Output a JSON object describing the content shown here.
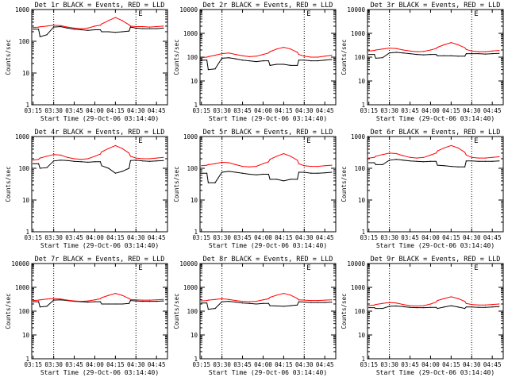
{
  "colors": {
    "events": "#000000",
    "lld": "#ff0000",
    "axes": "#000000",
    "background": "#ffffff"
  },
  "shared": {
    "ylabel": "Counts/sec",
    "xlabel": "Start Time (29-Oct-06 03:14:40)",
    "x_ticks": [
      "03:15",
      "03:30",
      "03:45",
      "04:00",
      "04:15",
      "04:30",
      "04:45"
    ],
    "y_ticks": [
      "1",
      "10",
      "100",
      "1000"
    ],
    "y_ticks_top": [
      "1",
      "10",
      "100",
      "1000",
      "10000"
    ],
    "markers": [
      "03:30",
      "04:30"
    ],
    "e_marker": "E",
    "y_scale": "log"
  },
  "chart_data": [
    {
      "type": "line",
      "title": "Det 1r  BLACK = Events, RED = LLD",
      "ylim": [
        1,
        1000
      ],
      "x": [
        "03:15",
        "03:19",
        "03:20",
        "03:25",
        "03:30",
        "03:35",
        "03:40",
        "03:45",
        "03:50",
        "03:55",
        "04:00",
        "04:04",
        "04:05",
        "04:10",
        "04:15",
        "04:20",
        "04:25",
        "04:26",
        "04:30",
        "04:35",
        "04:40",
        "04:45",
        "04:50"
      ],
      "series": [
        {
          "name": "Events",
          "values": [
            240,
            240,
            140,
            160,
            280,
            290,
            260,
            240,
            230,
            220,
            230,
            230,
            200,
            200,
            190,
            200,
            210,
            280,
            260,
            250,
            250,
            250,
            260
          ]
        },
        {
          "name": "LLD",
          "values": [
            270,
            280,
            285,
            300,
            320,
            310,
            280,
            260,
            250,
            260,
            300,
            320,
            350,
            450,
            560,
            450,
            330,
            300,
            290,
            290,
            280,
            290,
            300
          ]
        }
      ]
    },
    {
      "type": "line",
      "title": "Det 2r  BLACK = Events, RED = LLD",
      "ylim": [
        1,
        10000
      ],
      "x": [
        "03:15",
        "03:19",
        "03:20",
        "03:25",
        "03:30",
        "03:35",
        "03:40",
        "03:45",
        "03:50",
        "03:55",
        "04:00",
        "04:04",
        "04:05",
        "04:10",
        "04:15",
        "04:20",
        "04:25",
        "04:26",
        "04:30",
        "04:35",
        "04:40",
        "04:45",
        "04:50"
      ],
      "series": [
        {
          "name": "Events",
          "values": [
            75,
            75,
            30,
            32,
            90,
            95,
            85,
            75,
            70,
            65,
            70,
            70,
            45,
            50,
            50,
            45,
            45,
            75,
            75,
            70,
            70,
            75,
            80
          ]
        },
        {
          "name": "LLD",
          "values": [
            95,
            100,
            105,
            120,
            140,
            150,
            130,
            115,
            105,
            110,
            130,
            150,
            170,
            220,
            260,
            220,
            160,
            130,
            110,
            100,
            100,
            110,
            120
          ]
        }
      ]
    },
    {
      "type": "line",
      "title": "Det 3r  BLACK = Events, RED = LLD",
      "ylim": [
        1,
        10000
      ],
      "x": [
        "03:15",
        "03:19",
        "03:20",
        "03:25",
        "03:30",
        "03:35",
        "03:40",
        "03:45",
        "03:50",
        "03:55",
        "04:00",
        "04:04",
        "04:05",
        "04:10",
        "04:15",
        "04:20",
        "04:25",
        "04:26",
        "04:30",
        "04:35",
        "04:40",
        "04:45",
        "04:50"
      ],
      "series": [
        {
          "name": "Events",
          "values": [
            130,
            130,
            90,
            95,
            150,
            160,
            150,
            140,
            130,
            125,
            130,
            130,
            115,
            115,
            115,
            110,
            110,
            140,
            140,
            140,
            135,
            140,
            145
          ]
        },
        {
          "name": "LLD",
          "values": [
            180,
            190,
            200,
            220,
            240,
            230,
            200,
            180,
            170,
            175,
            200,
            230,
            260,
            330,
            410,
            330,
            250,
            210,
            180,
            170,
            170,
            180,
            190
          ]
        }
      ]
    },
    {
      "type": "line",
      "title": "Det 4r  BLACK = Events, RED = LLD",
      "ylim": [
        1,
        1000
      ],
      "x": [
        "03:15",
        "03:19",
        "03:20",
        "03:25",
        "03:30",
        "03:35",
        "03:40",
        "03:45",
        "03:50",
        "03:55",
        "04:00",
        "04:04",
        "04:05",
        "04:10",
        "04:15",
        "04:20",
        "04:25",
        "04:26",
        "04:30",
        "04:35",
        "04:40",
        "04:45",
        "04:50"
      ],
      "series": [
        {
          "name": "Events",
          "values": [
            140,
            140,
            100,
            105,
            170,
            180,
            175,
            165,
            160,
            155,
            160,
            160,
            120,
            100,
            70,
            80,
            100,
            175,
            180,
            170,
            165,
            170,
            175
          ]
        },
        {
          "name": "LLD",
          "values": [
            180,
            190,
            210,
            240,
            270,
            260,
            220,
            200,
            190,
            200,
            240,
            280,
            330,
            420,
            520,
            420,
            300,
            240,
            210,
            200,
            200,
            210,
            220
          ]
        }
      ]
    },
    {
      "type": "line",
      "title": "Det 5r  BLACK = Events, RED = LLD",
      "ylim": [
        1,
        1000
      ],
      "x": [
        "03:15",
        "03:19",
        "03:20",
        "03:25",
        "03:30",
        "03:35",
        "03:40",
        "03:45",
        "03:50",
        "03:55",
        "04:00",
        "04:04",
        "04:05",
        "04:10",
        "04:15",
        "04:20",
        "04:25",
        "04:26",
        "04:30",
        "04:35",
        "04:40",
        "04:45",
        "04:50"
      ],
      "series": [
        {
          "name": "Events",
          "values": [
            70,
            70,
            35,
            35,
            75,
            80,
            75,
            70,
            65,
            62,
            65,
            65,
            45,
            45,
            40,
            45,
            45,
            75,
            75,
            70,
            70,
            72,
            75
          ]
        },
        {
          "name": "LLD",
          "values": [
            120,
            125,
            130,
            140,
            155,
            150,
            130,
            115,
            110,
            115,
            140,
            160,
            190,
            240,
            290,
            240,
            180,
            140,
            120,
            115,
            115,
            120,
            125
          ]
        }
      ]
    },
    {
      "type": "line",
      "title": "Det 6r  BLACK = Events, RED = LLD",
      "ylim": [
        1,
        1000
      ],
      "x": [
        "03:15",
        "03:19",
        "03:20",
        "03:25",
        "03:30",
        "03:35",
        "03:40",
        "03:45",
        "03:50",
        "03:55",
        "04:00",
        "04:04",
        "04:05",
        "04:10",
        "04:15",
        "04:20",
        "04:25",
        "04:26",
        "04:30",
        "04:35",
        "04:40",
        "04:45",
        "04:50"
      ],
      "series": [
        {
          "name": "Events",
          "values": [
            150,
            150,
            130,
            130,
            180,
            190,
            180,
            170,
            165,
            160,
            165,
            165,
            125,
            120,
            115,
            110,
            110,
            170,
            170,
            165,
            165,
            165,
            170
          ]
        },
        {
          "name": "LLD",
          "values": [
            210,
            220,
            240,
            270,
            300,
            290,
            250,
            220,
            210,
            220,
            260,
            300,
            350,
            440,
            520,
            440,
            320,
            260,
            220,
            210,
            210,
            220,
            230
          ]
        }
      ]
    },
    {
      "type": "line",
      "title": "Det 7r  BLACK = Events, RED = LLD",
      "ylim": [
        1,
        10000
      ],
      "x": [
        "03:15",
        "03:19",
        "03:20",
        "03:25",
        "03:30",
        "03:35",
        "03:40",
        "03:45",
        "03:50",
        "03:55",
        "04:00",
        "04:04",
        "04:05",
        "04:10",
        "04:15",
        "04:20",
        "04:25",
        "04:26",
        "04:30",
        "04:35",
        "04:40",
        "04:45",
        "04:50"
      ],
      "series": [
        {
          "name": "Events",
          "values": [
            250,
            250,
            150,
            160,
            290,
            300,
            280,
            260,
            250,
            240,
            250,
            250,
            200,
            200,
            200,
            200,
            210,
            280,
            270,
            260,
            260,
            260,
            270
          ]
        },
        {
          "name": "LLD",
          "values": [
            280,
            290,
            300,
            320,
            340,
            320,
            290,
            270,
            260,
            270,
            300,
            330,
            370,
            460,
            560,
            460,
            340,
            310,
            300,
            290,
            290,
            300,
            310
          ]
        }
      ]
    },
    {
      "type": "line",
      "title": "Det 8r  BLACK = Events, RED = LLD",
      "ylim": [
        1,
        10000
      ],
      "x": [
        "03:15",
        "03:19",
        "03:20",
        "03:25",
        "03:30",
        "03:35",
        "03:40",
        "03:45",
        "03:50",
        "03:55",
        "04:00",
        "04:04",
        "04:05",
        "04:10",
        "04:15",
        "04:20",
        "04:25",
        "04:26",
        "04:30",
        "04:35",
        "04:40",
        "04:45",
        "04:50"
      ],
      "series": [
        {
          "name": "Events",
          "values": [
            220,
            220,
            120,
            130,
            250,
            260,
            240,
            220,
            210,
            200,
            210,
            210,
            170,
            165,
            160,
            170,
            180,
            250,
            240,
            230,
            230,
            230,
            240
          ]
        },
        {
          "name": "LLD",
          "values": [
            270,
            280,
            290,
            310,
            330,
            310,
            280,
            260,
            250,
            260,
            300,
            330,
            380,
            470,
            560,
            470,
            340,
            300,
            290,
            280,
            280,
            290,
            300
          ]
        }
      ]
    },
    {
      "type": "line",
      "title": "Det 9r  BLACK = Events, RED = LLD",
      "ylim": [
        1,
        10000
      ],
      "x": [
        "03:15",
        "03:19",
        "03:20",
        "03:25",
        "03:30",
        "03:35",
        "03:40",
        "03:45",
        "03:50",
        "03:55",
        "04:00",
        "04:04",
        "04:05",
        "04:10",
        "04:15",
        "04:20",
        "04:25",
        "04:26",
        "04:30",
        "04:35",
        "04:40",
        "04:45",
        "04:50"
      ],
      "series": [
        {
          "name": "Events",
          "values": [
            140,
            140,
            130,
            130,
            160,
            165,
            155,
            145,
            140,
            140,
            145,
            145,
            130,
            150,
            170,
            150,
            130,
            150,
            150,
            145,
            145,
            150,
            155
          ]
        },
        {
          "name": "LLD",
          "values": [
            170,
            180,
            190,
            210,
            230,
            220,
            190,
            170,
            165,
            170,
            200,
            240,
            280,
            340,
            400,
            340,
            260,
            210,
            190,
            180,
            180,
            190,
            200
          ]
        }
      ]
    }
  ]
}
